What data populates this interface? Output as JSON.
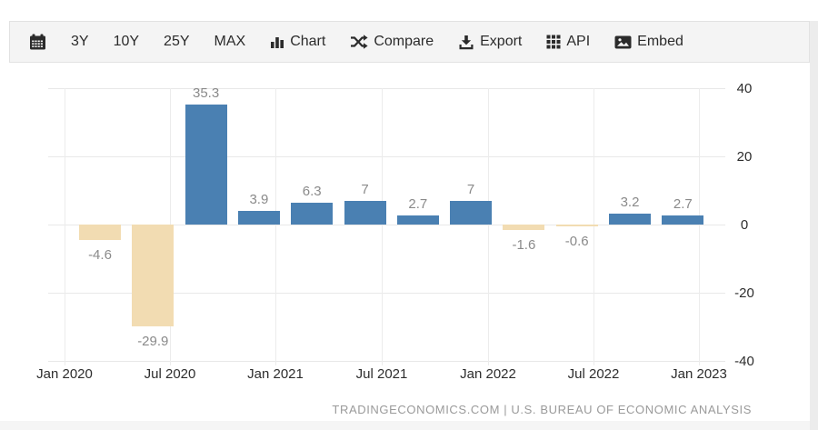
{
  "toolbar": {
    "items": [
      {
        "name": "calendar",
        "icon": "calendar-icon",
        "label": ""
      },
      {
        "name": "range-3y",
        "label": "3Y"
      },
      {
        "name": "range-10y",
        "label": "10Y"
      },
      {
        "name": "range-25y",
        "label": "25Y"
      },
      {
        "name": "range-max",
        "label": "MAX"
      },
      {
        "name": "chart",
        "icon": "bar-chart-icon",
        "label": "Chart"
      },
      {
        "name": "compare",
        "icon": "shuffle-icon",
        "label": "Compare"
      },
      {
        "name": "export",
        "icon": "download-icon",
        "label": "Export"
      },
      {
        "name": "api",
        "icon": "grid-icon",
        "label": "API"
      },
      {
        "name": "embed",
        "icon": "image-icon",
        "label": "Embed"
      }
    ]
  },
  "chart_data": {
    "type": "bar",
    "title": "",
    "categories": [
      "Q1 2020",
      "Q2 2020",
      "Q3 2020",
      "Q4 2020",
      "Q1 2021",
      "Q2 2021",
      "Q3 2021",
      "Q4 2021",
      "Q1 2022",
      "Q2 2022",
      "Q3 2022",
      "Q4 2022"
    ],
    "values": [
      -4.6,
      -29.9,
      35.3,
      3.9,
      6.3,
      7,
      2.7,
      7,
      -1.6,
      -0.6,
      3.2,
      2.7
    ],
    "data_labels": [
      "-4.6",
      "-29.9",
      "35.3",
      "3.9",
      "6.3",
      "7",
      "2.7",
      "7",
      "-1.6",
      "-0.6",
      "3.2",
      "2.7"
    ],
    "x_tick_labels": [
      "Jan 2020",
      "Jul 2020",
      "Jan 2021",
      "Jul 2021",
      "Jan 2022",
      "Jul 2022",
      "Jan 2023"
    ],
    "y_ticks": [
      40,
      20,
      0,
      -20,
      -40
    ],
    "y_tick_labels": [
      "40",
      "20",
      "0",
      "-20",
      "-40"
    ],
    "ylim": [
      -40,
      40
    ],
    "grid": true,
    "legend": "none",
    "colors": {
      "positive": "#4a80b2",
      "negative": "#f2dcb2",
      "gridline": "#e8e8e8",
      "data_label": "#8a8a8a",
      "axis_text": "#2d2d2d"
    }
  },
  "footer": {
    "source_text": "TRADINGECONOMICS.COM | U.S. BUREAU OF ECONOMIC ANALYSIS"
  }
}
